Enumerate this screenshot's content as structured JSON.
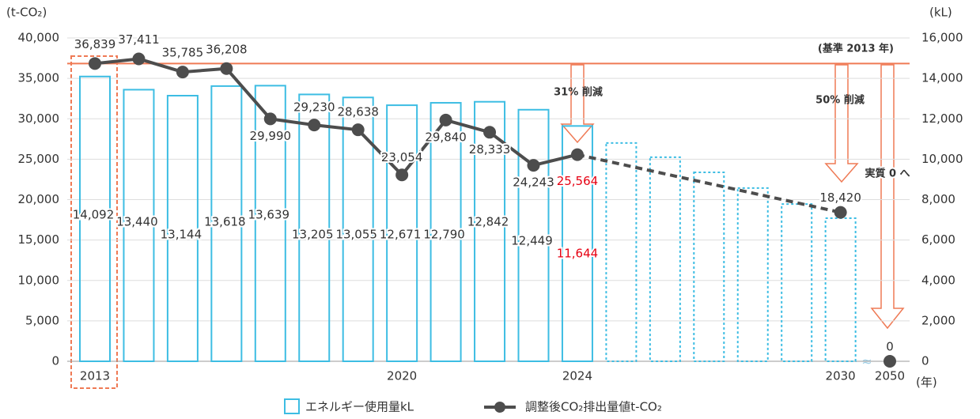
{
  "chart_data": {
    "type": "bar_line",
    "y_axis_label": "(t-CO₂)",
    "y2_axis_label": "(kL)",
    "x_axis_label": "(年)",
    "categories": [
      "2013",
      null,
      null,
      null,
      null,
      null,
      null,
      "2020",
      null,
      null,
      null,
      "2024",
      null,
      null,
      null,
      null,
      null,
      "2030",
      "2050"
    ],
    "ylim": [
      0,
      40000
    ],
    "yticks": [
      0,
      {
        "value": 5000,
        "label": "5,000"
      },
      {
        "value": 10000,
        "label": "10,000"
      },
      {
        "value": 15000,
        "label": "15,000"
      },
      {
        "value": 20000,
        "label": "20,000"
      },
      {
        "value": 25000,
        "label": "25,000"
      },
      {
        "value": 30000,
        "label": "30,000"
      },
      {
        "value": 35000,
        "label": "35,000"
      },
      {
        "value": 40000,
        "label": "40,000"
      }
    ],
    "y2lim": [
      0,
      16000
    ],
    "y2ticks": [
      0,
      {
        "value": 2000,
        "label": "2,000"
      },
      {
        "value": 4000,
        "label": "4,000"
      },
      {
        "value": 6000,
        "label": "6,000"
      },
      {
        "value": 8000,
        "label": "8,000"
      },
      {
        "value": 10000,
        "label": "10,000"
      },
      {
        "value": 12000,
        "label": "12,000"
      },
      {
        "value": 14000,
        "label": "14,000"
      },
      {
        "value": 16000,
        "label": "16,000"
      }
    ],
    "grid": true,
    "series": [
      {
        "name": "エネルギー使用量kL",
        "type": "bar",
        "axis": "y2",
        "color": "#3dbde3",
        "values": [
          14092,
          13440,
          13144,
          13618,
          13639,
          13205,
          13055,
          12671,
          12790,
          12842,
          12449,
          11644,
          10800,
          10100,
          9350,
          8570,
          7780,
          7080,
          null
        ],
        "value_labels": [
          "14,092",
          "13,440",
          "13,144",
          "13,618",
          "13,639",
          "13,205",
          "13,055",
          "12,671",
          "12,790",
          "12,842",
          "12,449",
          "11,644",
          null,
          null,
          null,
          null,
          null,
          null,
          null
        ],
        "highlight": {
          "index": 11,
          "color": "#e60012"
        }
      },
      {
        "name": "調整後CO₂排出量値t-CO₂",
        "type": "line",
        "color": "#4d4d4d",
        "values": [
          36839,
          37411,
          35785,
          36208,
          29990,
          29230,
          28638,
          23054,
          29840,
          28333,
          24243,
          25564,
          null,
          null,
          null,
          null,
          null,
          18420,
          0
        ],
        "value_labels": [
          "36,839",
          "37,411",
          "35,785",
          "36,208",
          "29,990",
          "29,230",
          "28,638",
          "23,054",
          "29,840",
          "28,333",
          "24,243",
          "25,564",
          null,
          null,
          null,
          null,
          null,
          "18,420",
          "0"
        ],
        "highlight": {
          "index": 11,
          "color": "#e60012"
        }
      }
    ],
    "annotations": [
      "(基準 2013 年)",
      "31% 削減",
      "50% 削減",
      "実質 0 へ"
    ]
  }
}
